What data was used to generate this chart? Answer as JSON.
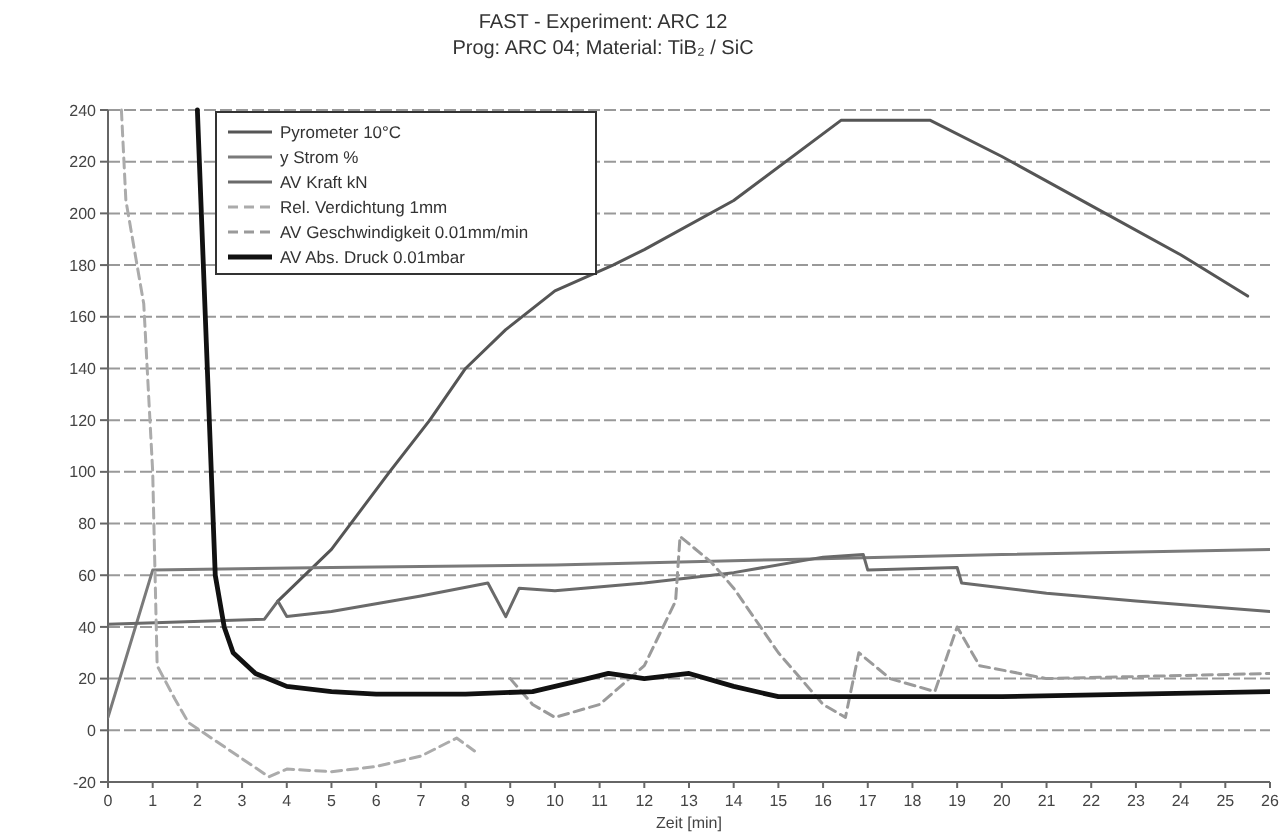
{
  "chart_data": {
    "type": "line",
    "title": "FAST - Experiment: ARC 12",
    "subtitle": "Prog: ARC 04; Material: TiB₂ / SiC",
    "xlabel": "Zeit [min]",
    "xlim": [
      0,
      26
    ],
    "xticks": [
      0,
      1,
      2,
      3,
      4,
      5,
      6,
      7,
      8,
      9,
      10,
      11,
      12,
      13,
      14,
      15,
      16,
      17,
      18,
      19,
      20,
      21,
      22,
      23,
      24,
      25,
      26
    ],
    "ylim": [
      -20,
      240
    ],
    "yticks": [
      -20,
      0,
      20,
      40,
      60,
      80,
      100,
      120,
      140,
      160,
      180,
      200,
      220,
      240
    ],
    "grid": "y",
    "legend": "top left",
    "marker": "none",
    "series": [
      {
        "name": "Pyrometer 10°C",
        "color": "#555555",
        "line_style": "solid",
        "x": [
          3.8,
          5,
          6.3,
          7.2,
          8,
          8.9,
          10,
          11.3,
          12,
          14,
          16.4,
          18.4,
          20,
          22,
          24,
          25.5
        ],
        "values": [
          50,
          70,
          100,
          120,
          140,
          155,
          170,
          180,
          186,
          205,
          236,
          236,
          222,
          203,
          184,
          168
        ]
      },
      {
        "name": "y Strom %",
        "color": "#7a7a7a",
        "line_style": "solid",
        "x": [
          0,
          1,
          5,
          10,
          15,
          20,
          26
        ],
        "values": [
          5,
          62,
          63,
          64,
          66,
          68,
          70
        ]
      },
      {
        "name": "AV Kraft kN",
        "color": "#6a6a6a",
        "line_style": "solid",
        "x": [
          0,
          3.5,
          3.8,
          4,
          5,
          7,
          8.5,
          8.9,
          9.2,
          10,
          12,
          14,
          16,
          16.9,
          17,
          19,
          19.1,
          21,
          23,
          26
        ],
        "values": [
          41,
          43,
          50,
          44,
          46,
          52,
          57,
          44,
          55,
          54,
          57,
          61,
          67,
          68,
          62,
          63,
          57,
          53,
          50,
          46
        ]
      },
      {
        "name": "Rel. Verdichtung 1mm",
        "color": "#ababab",
        "line_style": "dashed",
        "x": [
          0.3,
          0.4,
          0.8,
          1,
          1.1,
          1.5,
          1.8,
          3.6,
          4,
          5,
          6,
          7,
          7.8,
          8.2
        ],
        "values": [
          240,
          205,
          165,
          100,
          25,
          12,
          3,
          -18,
          -15,
          -16,
          -14,
          -10,
          -3,
          -8
        ]
      },
      {
        "name": "AV Geschwindigkeit 0.01mm/min",
        "color": "#9a9a9a",
        "line_style": "dashed",
        "x": [
          9,
          9.5,
          10,
          11,
          12,
          12.7,
          12.8,
          13.5,
          14,
          15,
          16,
          16.5,
          16.8,
          17.5,
          18.5,
          19,
          19.5,
          21,
          26
        ],
        "values": [
          20,
          10,
          5,
          10,
          25,
          50,
          75,
          65,
          55,
          30,
          10,
          5,
          30,
          20,
          15,
          40,
          25,
          20,
          22
        ]
      },
      {
        "name": "AV Abs. Druck 0.01mbar",
        "color": "#111111",
        "line_style": "solid",
        "x": [
          2,
          2.2,
          2.4,
          2.6,
          2.8,
          3.3,
          4,
          5,
          6,
          8,
          9.5,
          10.5,
          11.2,
          12,
          13,
          14,
          15,
          17,
          20,
          23,
          26
        ],
        "values": [
          240,
          150,
          60,
          40,
          30,
          22,
          17,
          15,
          14,
          14,
          15,
          19,
          22,
          20,
          22,
          17,
          13,
          13,
          13,
          14,
          15
        ]
      }
    ]
  }
}
